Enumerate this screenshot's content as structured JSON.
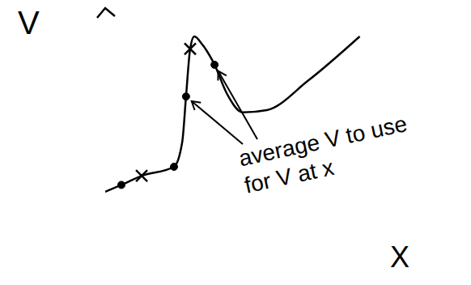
{
  "chart_data": {
    "type": "line",
    "x_label": "X",
    "y_label": "V",
    "xlim": [
      0,
      10
    ],
    "ylim": [
      0,
      10
    ],
    "tick_labels": false,
    "grid": false,
    "series": [
      {
        "type": "line",
        "color": "#000000",
        "x": [
          0,
          0.47,
          1.06,
          2.0,
          2.24,
          2.35,
          2.47,
          2.59,
          2.82,
          3.18,
          3.53,
          4.0,
          4.7,
          5.9,
          7.4
        ],
        "values": [
          1.9,
          2.2,
          2.6,
          3.0,
          4.1,
          6.1,
          8.2,
          8.75,
          8.4,
          7.5,
          6.25,
          5.4,
          5.5,
          6.8,
          8.75
        ]
      },
      {
        "type": "scatter",
        "marker": "circle",
        "color": "#000000",
        "x": [
          0.47,
          2.0,
          2.35,
          3.18
        ],
        "values": [
          2.2,
          3.0,
          6.1,
          7.5
        ]
      },
      {
        "type": "scatter",
        "marker": "x",
        "color": "#000000",
        "x": [
          1.06,
          2.47
        ],
        "values": [
          2.6,
          8.2
        ]
      }
    ],
    "annotation": "average V to use for V at x"
  }
}
